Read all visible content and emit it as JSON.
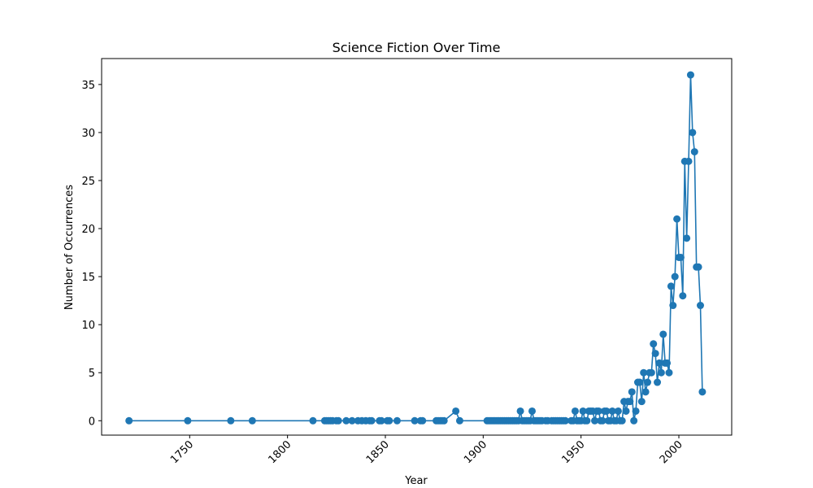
{
  "chart_data": {
    "type": "line",
    "title": "Science Fiction Over Time",
    "xlabel": "Year",
    "ylabel": "Number of Occurrences",
    "xlim": [
      1705,
      2027
    ],
    "ylim": [
      -1.5,
      37.7
    ],
    "xticks": [
      1750,
      1800,
      1850,
      1900,
      1950,
      2000
    ],
    "yticks": [
      0,
      5,
      10,
      15,
      20,
      25,
      30,
      35
    ],
    "x_tick_rotation_deg": 45,
    "grid": false,
    "legend": "none",
    "series": [
      {
        "color": "#1f77b4",
        "marker": "circle",
        "x": [
          1719,
          1749,
          1771,
          1782,
          1813,
          1819,
          1820,
          1821,
          1822,
          1823,
          1825,
          1826,
          1830,
          1833,
          1836,
          1838,
          1840,
          1842,
          1843,
          1847,
          1848,
          1851,
          1852,
          1856,
          1865,
          1868,
          1869,
          1876,
          1877,
          1878,
          1879,
          1880,
          1886,
          1888,
          1902,
          1903,
          1904,
          1905,
          1906,
          1907,
          1908,
          1909,
          1910,
          1911,
          1912,
          1913,
          1914,
          1915,
          1916,
          1917,
          1918,
          1919,
          1920,
          1921,
          1922,
          1923,
          1924,
          1925,
          1926,
          1927,
          1928,
          1929,
          1930,
          1932,
          1933,
          1935,
          1936,
          1937,
          1938,
          1939,
          1940,
          1941,
          1942,
          1945,
          1946,
          1947,
          1948,
          1949,
          1950,
          1951,
          1952,
          1953,
          1954,
          1955,
          1956,
          1957,
          1958,
          1959,
          1960,
          1961,
          1962,
          1963,
          1964,
          1965,
          1966,
          1967,
          1968,
          1969,
          1970,
          1971,
          1972,
          1973,
          1974,
          1975,
          1976,
          1977,
          1978,
          1979,
          1980,
          1981,
          1982,
          1983,
          1984,
          1985,
          1986,
          1987,
          1988,
          1989,
          1990,
          1991,
          1992,
          1993,
          1994,
          1995,
          1996,
          1997,
          1998,
          1999,
          2000,
          2001,
          2002,
          2003,
          2004,
          2005,
          2006,
          2007,
          2008,
          2009,
          2010,
          2011,
          2012
        ],
        "y": [
          0,
          0,
          0,
          0,
          0,
          0,
          0,
          0,
          0,
          0,
          0,
          0,
          0,
          0,
          0,
          0,
          0,
          0,
          0,
          0,
          0,
          0,
          0,
          0,
          0,
          0,
          0,
          0,
          0,
          0,
          0,
          0,
          1,
          0,
          0,
          0,
          0,
          0,
          0,
          0,
          0,
          0,
          0,
          0,
          0,
          0,
          0,
          0,
          0,
          0,
          0,
          1,
          0,
          0,
          0,
          0,
          0,
          1,
          0,
          0,
          0,
          0,
          0,
          0,
          0,
          0,
          0,
          0,
          0,
          0,
          0,
          0,
          0,
          0,
          0,
          1,
          0,
          0,
          0,
          1,
          0,
          0,
          1,
          1,
          1,
          0,
          1,
          1,
          0,
          0,
          1,
          1,
          0,
          0,
          1,
          0,
          0,
          1,
          0,
          0,
          2,
          1,
          2,
          2,
          3,
          0,
          1,
          4,
          4,
          2,
          5,
          3,
          4,
          5,
          5,
          8,
          7,
          4,
          6,
          5,
          9,
          6,
          6,
          5,
          14,
          12,
          15,
          21,
          17,
          17,
          13,
          27,
          19,
          27,
          36,
          30,
          28,
          16,
          16,
          12,
          3
        ]
      }
    ]
  }
}
